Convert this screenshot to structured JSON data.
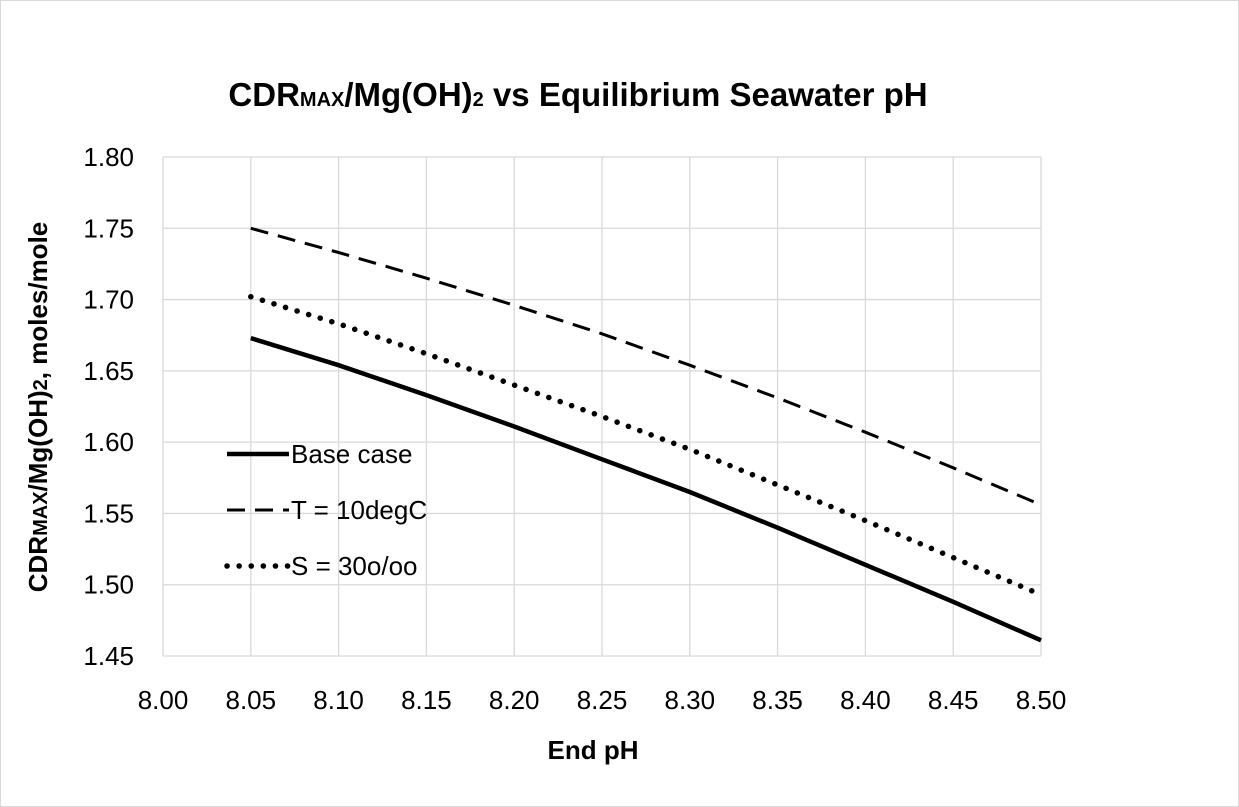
{
  "chart_data": {
    "type": "line",
    "title": {
      "parts": [
        {
          "text": "CDR",
          "sub": false
        },
        {
          "text": "MAX",
          "sub": true
        },
        {
          "text": "/Mg(OH)",
          "sub": false
        },
        {
          "text": "2",
          "sub": true
        },
        {
          "text": " vs Equilibrium Seawater pH",
          "sub": false
        }
      ]
    },
    "xlabel": "End pH",
    "ylabel": {
      "parts": [
        {
          "text": "CDR",
          "sub": false
        },
        {
          "text": "MAX",
          "sub": true
        },
        {
          "text": "/Mg(OH)",
          "sub": false
        },
        {
          "text": "2",
          "sub": true
        },
        {
          "text": ", moles/mole",
          "sub": false
        }
      ]
    },
    "xlim": [
      8.0,
      8.5
    ],
    "ylim": [
      1.45,
      1.8
    ],
    "x_ticks": [
      "8.00",
      "8.05",
      "8.10",
      "8.15",
      "8.20",
      "8.25",
      "8.30",
      "8.35",
      "8.40",
      "8.45",
      "8.50"
    ],
    "y_ticks": [
      "1.45",
      "1.50",
      "1.55",
      "1.60",
      "1.65",
      "1.70",
      "1.75",
      "1.80"
    ],
    "grid": true,
    "legend_position": "left-middle",
    "series": [
      {
        "name": "Base case",
        "style": "solid",
        "color": "#000000",
        "x": [
          8.05,
          8.1,
          8.15,
          8.2,
          8.25,
          8.3,
          8.35,
          8.4,
          8.45,
          8.5
        ],
        "y": [
          1.673,
          1.654,
          1.633,
          1.611,
          1.588,
          1.565,
          1.54,
          1.514,
          1.488,
          1.461
        ]
      },
      {
        "name": "T = 10degC",
        "style": "dashed",
        "color": "#000000",
        "x": [
          8.05,
          8.1,
          8.15,
          8.2,
          8.25,
          8.3,
          8.35,
          8.4,
          8.45,
          8.5
        ],
        "y": [
          1.75,
          1.733,
          1.715,
          1.696,
          1.676,
          1.654,
          1.631,
          1.607,
          1.582,
          1.556
        ]
      },
      {
        "name": "S = 30o/oo",
        "style": "dotted",
        "color": "#000000",
        "x": [
          8.05,
          8.1,
          8.15,
          8.2,
          8.25,
          8.3,
          8.35,
          8.4,
          8.45,
          8.5
        ],
        "y": [
          1.702,
          1.683,
          1.662,
          1.64,
          1.618,
          1.595,
          1.57,
          1.545,
          1.519,
          1.493
        ]
      }
    ]
  }
}
